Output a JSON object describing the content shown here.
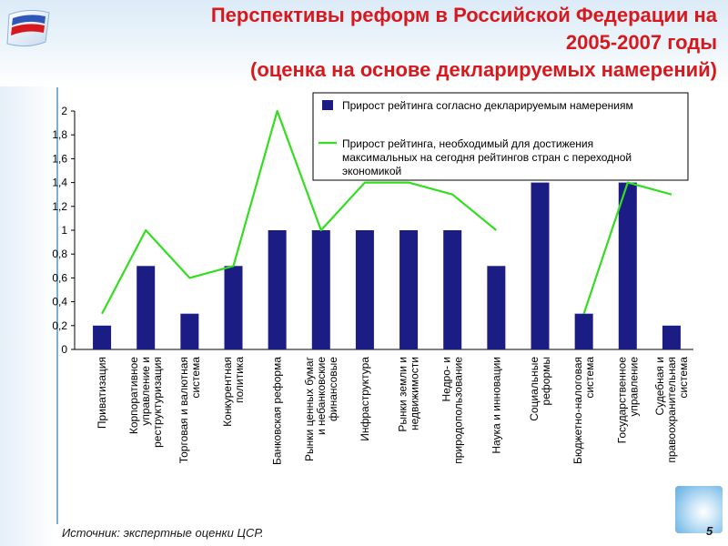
{
  "slide": {
    "title_lines": [
      "Перспективы реформ в Российской Федерации на",
      "2005-2007 годы",
      "(оценка на основе декларируемых намерений)"
    ],
    "source": "Источник: экспертные оценки ЦСР.",
    "page_number": "5"
  },
  "colors": {
    "title": "#d7191e",
    "bar": "#1c1c85",
    "line": "#33dd1f"
  },
  "chart_data": {
    "type": "bar",
    "title": "",
    "xlabel": "",
    "ylabel": "",
    "ylim": [
      0,
      2
    ],
    "yticks": [
      "0",
      "0,2",
      "0,4",
      "0,6",
      "0,8",
      "1",
      "1,2",
      "1,4",
      "1,6",
      "1,8",
      "2"
    ],
    "grid": false,
    "legend_position": "top-right",
    "categories": [
      [
        "Приватизация"
      ],
      [
        "Корпоративное",
        "управление и",
        "реструктуризация"
      ],
      [
        "Торговая и валютная",
        "система"
      ],
      [
        "Конкурентная",
        "политика"
      ],
      [
        "Банковская реформа"
      ],
      [
        "Рынки ценных бумаг",
        "и небанковские",
        "финансовые"
      ],
      [
        "Инфраструктура"
      ],
      [
        "Рынки земли и",
        "недвижимости"
      ],
      [
        "Недро- и",
        "природопользование"
      ],
      [
        "Наука и инновации"
      ],
      [
        "Социальные",
        "реформы"
      ],
      [
        "Бюджетно-налоговая",
        "система"
      ],
      [
        "Государственное",
        "управление"
      ],
      [
        "Судебная и",
        "правоохранительная",
        "система"
      ]
    ],
    "series": [
      {
        "name": "Прирост рейтинга согласно декларируемым намерениям",
        "type": "bar",
        "values": [
          0.2,
          0.7,
          0.3,
          0.7,
          1.0,
          1.0,
          1.0,
          1.0,
          1.0,
          0.7,
          1.4,
          0.3,
          1.4,
          0.2
        ]
      },
      {
        "name": "Прирост рейтинга, необходимый для достижения максимальных на сегодня рейтингов стран с переходной экономикой",
        "type": "line",
        "values": [
          0.3,
          1.0,
          0.6,
          0.7,
          2.0,
          1.0,
          1.4,
          1.4,
          1.3,
          1.0,
          null,
          0.3,
          1.4,
          1.3
        ]
      }
    ],
    "legend": [
      [
        "Прирост рейтинга согласно декларируемым намерениям"
      ],
      [
        "Прирост рейтинга, необходимый для достижения",
        "максимальных на сегодня  рейтингов стран с переходной",
        "экономикой"
      ]
    ]
  }
}
